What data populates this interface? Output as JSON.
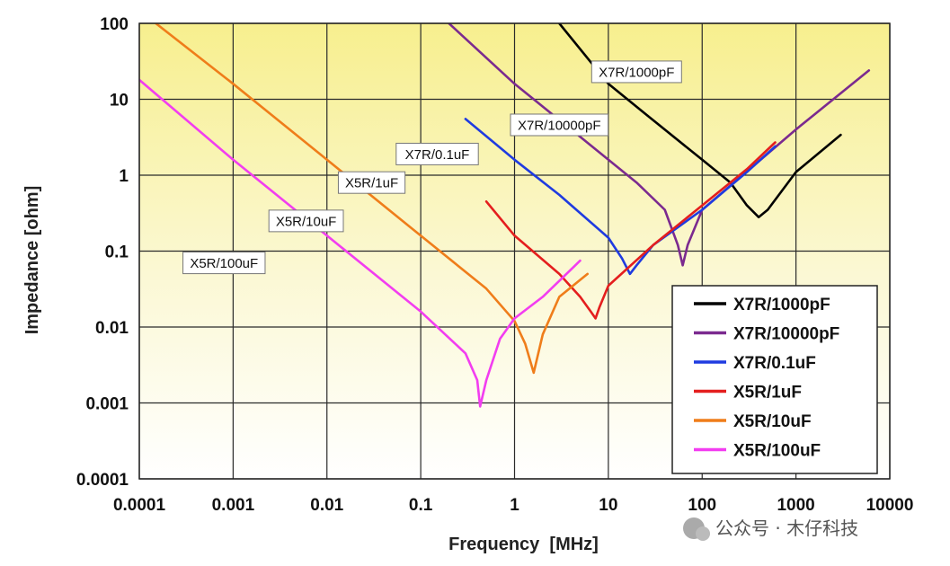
{
  "chart_data": {
    "type": "line",
    "xlabel": "Frequency  [MHz]",
    "ylabel": "Impedance [ohm]",
    "xscale": "log",
    "yscale": "log",
    "xlim": [
      0.0001,
      10000
    ],
    "ylim": [
      0.0001,
      100
    ],
    "x_tick_labels": [
      "0.0001",
      "0.001",
      "0.01",
      "0.1",
      "1",
      "10",
      "100",
      "1000",
      "10000"
    ],
    "y_tick_labels": [
      "100",
      "10",
      "1",
      "0.1",
      "0.01",
      "0.001",
      "0.0001"
    ],
    "grid": true,
    "legend_position": "bottom-right",
    "series": [
      {
        "name": "X7R/1000pF",
        "color": "#000000",
        "x": [
          3,
          10,
          30,
          100,
          200,
          300,
          400,
          500,
          1000,
          3000
        ],
        "y": [
          100,
          16,
          5.3,
          1.6,
          0.8,
          0.4,
          0.28,
          0.35,
          1.1,
          3.4
        ]
      },
      {
        "name": "X7R/10000pF",
        "color": "#7b2a8f",
        "x": [
          0.2,
          1,
          5,
          20,
          40,
          55,
          62,
          70,
          100,
          1000,
          6000
        ],
        "y": [
          100,
          16,
          3.2,
          0.8,
          0.35,
          0.12,
          0.065,
          0.12,
          0.35,
          4,
          24
        ]
      },
      {
        "name": "X7R/0.1uF",
        "color": "#1f3be0",
        "x": [
          0.3,
          1,
          3,
          10,
          14,
          17,
          20,
          30,
          100,
          300,
          600
        ],
        "y": [
          5.5,
          1.6,
          0.55,
          0.15,
          0.08,
          0.05,
          0.065,
          0.12,
          0.35,
          1.1,
          2.4
        ]
      },
      {
        "name": "X5R/1uF",
        "color": "#e41e1e",
        "x": [
          0.5,
          1,
          3,
          5,
          6.5,
          7.3,
          8,
          10,
          30,
          100,
          300,
          600
        ],
        "y": [
          0.45,
          0.16,
          0.05,
          0.025,
          0.016,
          0.013,
          0.018,
          0.035,
          0.12,
          0.4,
          1.2,
          2.7
        ]
      },
      {
        "name": "X5R/10uF",
        "color": "#ef7d1a",
        "x": [
          0.00015,
          0.001,
          0.01,
          0.1,
          0.5,
          1,
          1.3,
          1.6,
          2,
          3,
          6
        ],
        "y": [
          100,
          16,
          1.6,
          0.16,
          0.032,
          0.012,
          0.006,
          0.0025,
          0.008,
          0.025,
          0.05
        ]
      },
      {
        "name": "X5R/100uF",
        "color": "#f23df0",
        "x": [
          0.0001,
          0.001,
          0.01,
          0.1,
          0.3,
          0.4,
          0.43,
          0.5,
          0.7,
          1,
          2,
          5
        ],
        "y": [
          18,
          1.6,
          0.16,
          0.016,
          0.0045,
          0.002,
          0.0009,
          0.002,
          0.007,
          0.013,
          0.025,
          0.075
        ]
      }
    ],
    "annotations": [
      {
        "text": "X7R/1000pF",
        "x": 20,
        "y": 23
      },
      {
        "text": "X7R/10000pF",
        "x": 3,
        "y": 4.6
      },
      {
        "text": "X7R/0.1uF",
        "x": 0.15,
        "y": 1.9
      },
      {
        "text": "X5R/1uF",
        "x": 0.03,
        "y": 0.8
      },
      {
        "text": "X5R/10uF",
        "x": 0.006,
        "y": 0.25
      },
      {
        "text": "X5R/100uF",
        "x": 0.0008,
        "y": 0.07
      }
    ]
  },
  "watermark": {
    "text": "公众号 · 木仔科技"
  }
}
